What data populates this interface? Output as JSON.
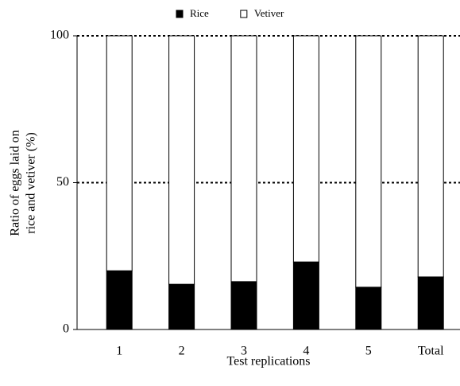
{
  "chart_data": {
    "type": "stacked_bar",
    "categories": [
      "1",
      "2",
      "3",
      "4",
      "5",
      "Total"
    ],
    "series": [
      {
        "name": "Rice",
        "color": "#000000",
        "values": [
          20.0,
          15.4,
          16.3,
          23.0,
          14.4,
          17.9
        ]
      },
      {
        "name": "Vetiver",
        "color": "#ffffff",
        "values": [
          80.0,
          84.6,
          83.7,
          77.0,
          85.6,
          82.1
        ]
      }
    ],
    "xlabel": "Test replications",
    "ylabel": [
      "Ratio of eggs laid on",
      "rice and vetiver (%)"
    ],
    "ylim": [
      0,
      100
    ],
    "yticks": [
      0,
      50,
      100
    ],
    "grid_ticks": [
      50,
      100
    ],
    "legend": "top"
  }
}
